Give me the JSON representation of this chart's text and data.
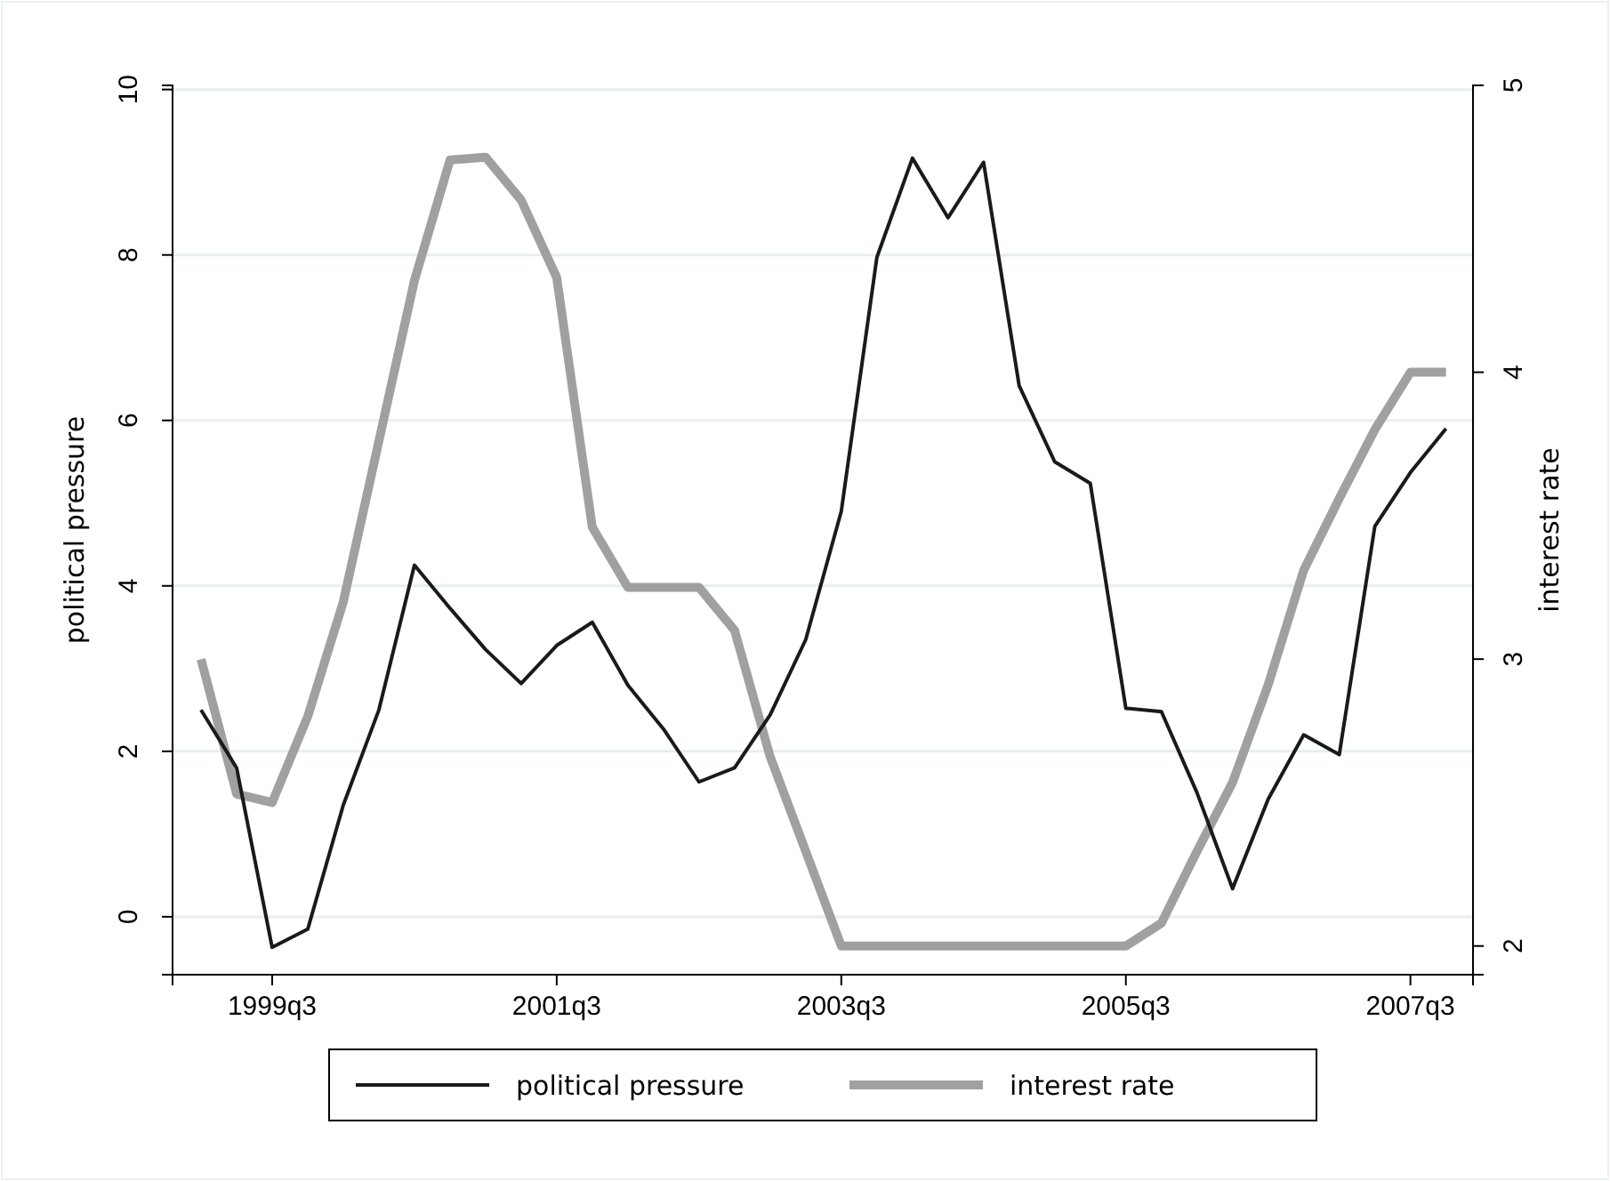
{
  "chart_data": {
    "type": "line",
    "xlabel": null,
    "ylabel": "political pressure",
    "y2label": "interest rate",
    "categories": [
      null,
      null,
      "1999q3",
      null,
      null,
      null,
      null,
      null,
      null,
      null,
      "2001q3",
      null,
      null,
      null,
      null,
      null,
      null,
      null,
      "2003q3",
      null,
      null,
      null,
      null,
      null,
      null,
      null,
      "2005q3",
      null,
      null,
      null,
      null,
      null,
      null,
      null,
      "2007q3",
      null
    ],
    "series": [
      {
        "name": "political pressure",
        "color": "#1a1a1a",
        "axis": "y",
        "values": [
          2.5,
          1.8,
          -0.37,
          -0.15,
          1.35,
          2.5,
          4.25,
          3.73,
          3.23,
          2.82,
          3.28,
          3.56,
          2.8,
          2.27,
          1.63,
          1.8,
          2.44,
          3.35,
          4.9,
          7.97,
          9.17,
          8.45,
          9.12,
          6.42,
          5.5,
          5.24,
          2.52,
          2.48,
          1.5,
          0.34,
          1.42,
          2.2,
          1.96,
          4.72,
          5.37,
          5.9
        ]
      },
      {
        "name": "interest rate",
        "color": "#a0a0a0",
        "axis": "y2",
        "values": [
          3.0,
          2.53,
          2.5,
          2.8,
          3.2,
          3.76,
          4.32,
          4.74,
          4.75,
          4.6,
          4.33,
          3.46,
          3.25,
          3.25,
          3.25,
          3.1,
          2.66,
          2.33,
          2.0,
          2.0,
          2.0,
          2.0,
          2.0,
          2.0,
          2.0,
          2.0,
          2.0,
          2.08,
          2.33,
          2.57,
          2.91,
          3.31,
          3.56,
          3.8,
          4.0,
          4.0
        ]
      }
    ],
    "ylim": [
      -0.7,
      10.05
    ],
    "yticks": [
      0,
      2,
      4,
      6,
      8,
      10
    ],
    "y2lim": [
      1.9,
      5.0
    ],
    "y2ticks": [
      2,
      3,
      4,
      5
    ],
    "grid": "y",
    "legend": "bottom",
    "line_style": "solid",
    "marker": "none"
  }
}
